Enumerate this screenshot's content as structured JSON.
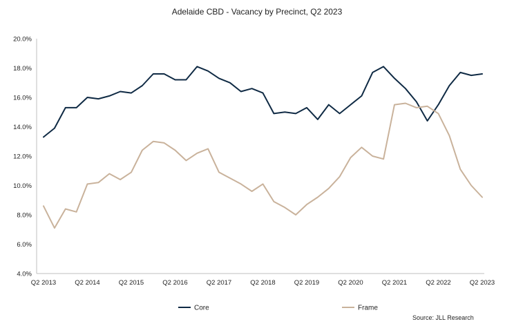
{
  "chart_data": {
    "type": "line",
    "title": "Adelaide CBD - Vacancy by Precinct, Q2 2023",
    "xlabel": "",
    "ylabel": "",
    "ylim": [
      4.0,
      20.0
    ],
    "y_ticks": [
      "4.0%",
      "6.0%",
      "8.0%",
      "10.0%",
      "12.0%",
      "14.0%",
      "16.0%",
      "18.0%",
      "20.0%"
    ],
    "x_ticks": [
      "Q2 2013",
      "Q2 2014",
      "Q2 2015",
      "Q2 2016",
      "Q2 2017",
      "Q2 2018",
      "Q2 2019",
      "Q2 2020",
      "Q2 2021",
      "Q2 2022",
      "Q2 2023"
    ],
    "x": [
      "Q2 2013",
      "Q3 2013",
      "Q4 2013",
      "Q1 2014",
      "Q2 2014",
      "Q3 2014",
      "Q4 2014",
      "Q1 2015",
      "Q2 2015",
      "Q3 2015",
      "Q4 2015",
      "Q1 2016",
      "Q2 2016",
      "Q3 2016",
      "Q4 2016",
      "Q1 2017",
      "Q2 2017",
      "Q3 2017",
      "Q4 2017",
      "Q1 2018",
      "Q2 2018",
      "Q3 2018",
      "Q4 2018",
      "Q1 2019",
      "Q2 2019",
      "Q3 2019",
      "Q4 2019",
      "Q1 2020",
      "Q2 2020",
      "Q3 2020",
      "Q4 2020",
      "Q1 2021",
      "Q2 2021",
      "Q3 2021",
      "Q4 2021",
      "Q1 2022",
      "Q2 2022",
      "Q3 2022",
      "Q4 2022",
      "Q1 2023",
      "Q2 2023"
    ],
    "series": [
      {
        "name": "Core",
        "color": "#0f2a44",
        "values": [
          13.3,
          13.9,
          15.3,
          15.3,
          16.0,
          15.9,
          16.1,
          16.4,
          16.3,
          16.8,
          17.6,
          17.6,
          17.2,
          17.2,
          18.1,
          17.8,
          17.3,
          17.0,
          16.4,
          16.6,
          16.3,
          14.9,
          15.0,
          14.9,
          15.3,
          14.5,
          15.5,
          14.9,
          15.5,
          16.1,
          17.7,
          18.1,
          17.3,
          16.6,
          15.7,
          14.4,
          15.5,
          16.8,
          17.7,
          17.5,
          17.6
        ]
      },
      {
        "name": "Frame",
        "color": "#c9b29b",
        "values": [
          8.6,
          7.1,
          8.4,
          8.2,
          10.1,
          10.2,
          10.8,
          10.4,
          10.9,
          12.4,
          13.0,
          12.9,
          12.4,
          11.7,
          12.2,
          12.5,
          10.9,
          10.5,
          10.1,
          9.6,
          10.1,
          8.9,
          8.5,
          8.0,
          8.7,
          9.2,
          9.8,
          10.6,
          11.9,
          12.6,
          12.0,
          11.8,
          15.5,
          15.6,
          15.3,
          15.4,
          14.9,
          13.4,
          11.1,
          10.0,
          9.2
        ]
      }
    ],
    "grid": false,
    "legend": "bottom",
    "source": "Source: JLL Research"
  }
}
